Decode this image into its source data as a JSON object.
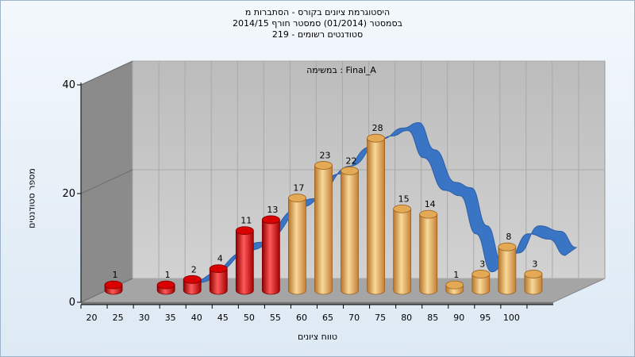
{
  "header": {
    "title_line1": "היסטוגרמת ציונים בקורס - הסתברות מ",
    "title_line2": "בסמסטר  (01/2014)  סמסטר חורף 2014/15",
    "title_line3": "סטודנטים רשומים - 219"
  },
  "chart_data": {
    "type": "bar",
    "annotation": "במשימה : Final_A",
    "xlabel": "טווח ציונים",
    "ylabel": "מספר סטודנטים",
    "ylim": [
      0,
      40
    ],
    "yticks": [
      0,
      20,
      40
    ],
    "xticks": [
      20,
      25,
      30,
      35,
      40,
      45,
      50,
      55,
      60,
      65,
      70,
      75,
      80,
      85,
      90,
      95,
      100
    ],
    "bars": [
      {
        "x": 20,
        "value": 1,
        "color": "red"
      },
      {
        "x": 30,
        "value": 1,
        "color": "red"
      },
      {
        "x": 35,
        "value": 2,
        "color": "red"
      },
      {
        "x": 40,
        "value": 4,
        "color": "red"
      },
      {
        "x": 45,
        "value": 11,
        "color": "red"
      },
      {
        "x": 50,
        "value": 13,
        "color": "red"
      },
      {
        "x": 55,
        "value": 17,
        "color": "orange"
      },
      {
        "x": 60,
        "value": 23,
        "color": "orange"
      },
      {
        "x": 65,
        "value": 22,
        "color": "orange"
      },
      {
        "x": 70,
        "value": 28,
        "color": "orange"
      },
      {
        "x": 75,
        "value": 15,
        "color": "orange"
      },
      {
        "x": 80,
        "value": 14,
        "color": "orange"
      },
      {
        "x": 85,
        "value": 1,
        "color": "orange"
      },
      {
        "x": 90,
        "value": 3,
        "color": "orange"
      },
      {
        "x": 95,
        "value": 8,
        "color": "orange"
      },
      {
        "x": 100,
        "value": 3,
        "color": "orange"
      }
    ],
    "trend": {
      "type": "ribbon",
      "color": "#3a74c4",
      "points": [
        [
          35,
          2
        ],
        [
          45,
          8
        ],
        [
          55,
          16
        ],
        [
          62,
          22
        ],
        [
          68,
          27
        ],
        [
          72,
          29
        ],
        [
          75,
          30
        ],
        [
          78,
          25
        ],
        [
          82,
          19
        ],
        [
          85,
          18
        ],
        [
          88,
          11
        ],
        [
          91,
          4
        ],
        [
          94,
          6
        ],
        [
          98,
          11
        ],
        [
          102,
          10
        ],
        [
          105,
          7
        ]
      ]
    },
    "colors": {
      "red": "#dd1111",
      "orange": "#e6a84e",
      "wall_back": "#c6c6c6",
      "wall_left": "#8b8b8b",
      "floor": "#a5a5a5",
      "ribbon": "#3a74c4"
    },
    "grid": true
  }
}
